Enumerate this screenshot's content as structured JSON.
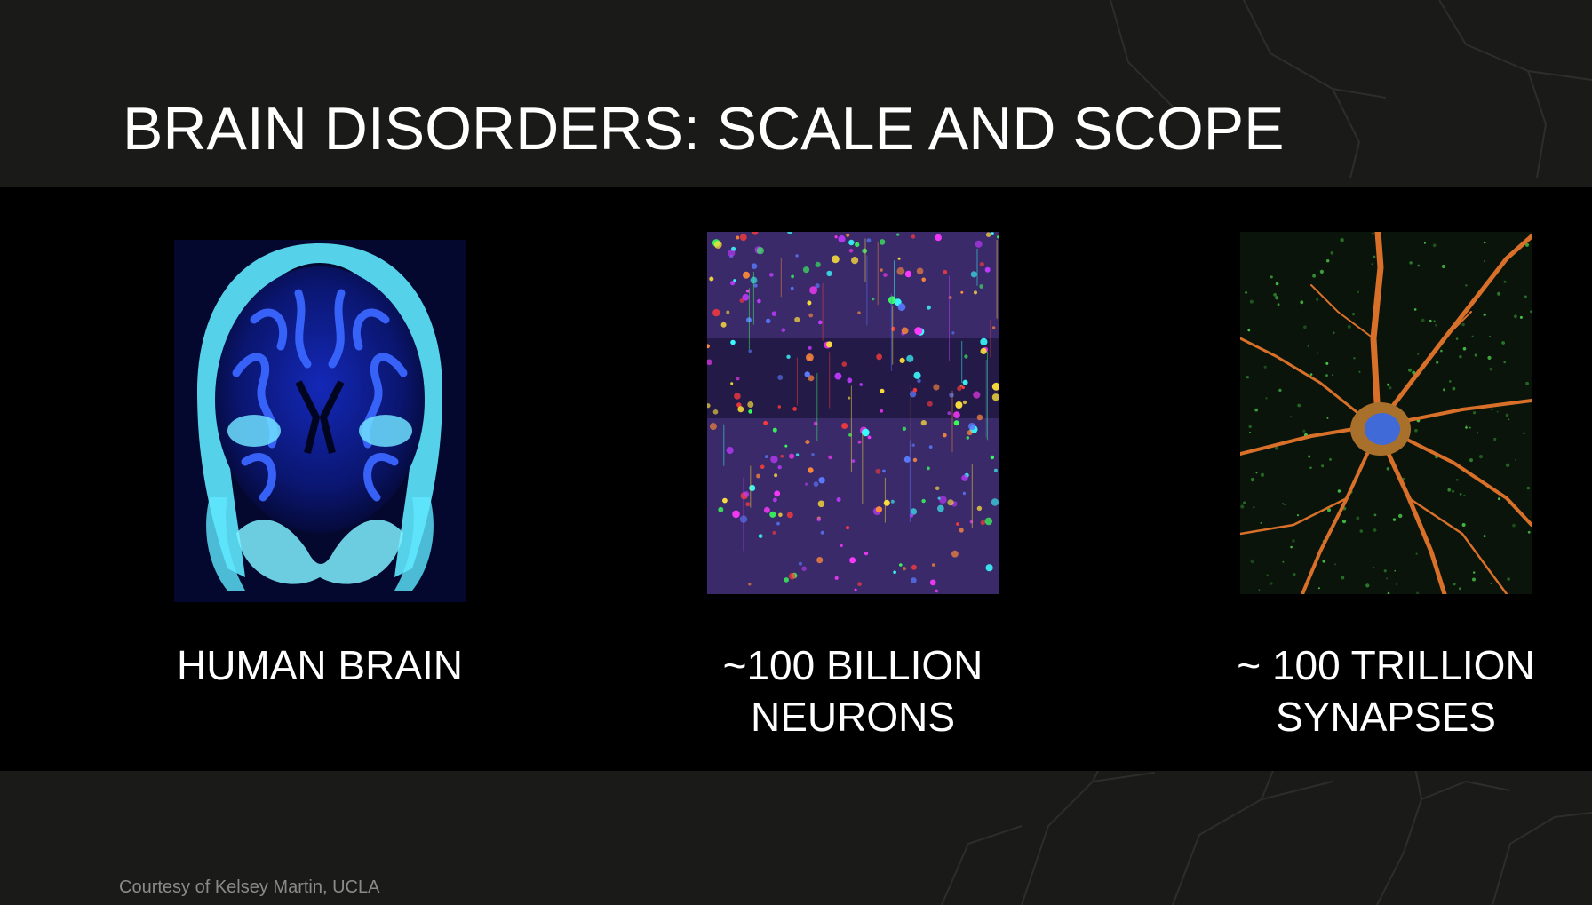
{
  "slide": {
    "title": "BRAIN DISORDERS: SCALE AND SCOPE",
    "credit": "Courtesy of Kelsey Martin, UCLA",
    "colors": {
      "header_background": "#1a1a18",
      "content_background": "#000000",
      "text": "#ffffff",
      "credit_text": "#8a8a86",
      "mri_blue": "#1b3dff",
      "mri_cyan": "#5fe8ff"
    },
    "panels": [
      {
        "name": "human-brain",
        "image": "brain-mri-scan-image",
        "caption_lines": [
          "HUMAN BRAIN"
        ]
      },
      {
        "name": "neurons",
        "image": "neuron-tissue-micrograph-image",
        "caption_lines": [
          "~100 BILLION",
          "NEURONS"
        ]
      },
      {
        "name": "synapses",
        "image": "single-neuron-micrograph-image",
        "caption_lines": [
          "~ 100 TRILLION",
          "SYNAPSES"
        ]
      }
    ]
  }
}
